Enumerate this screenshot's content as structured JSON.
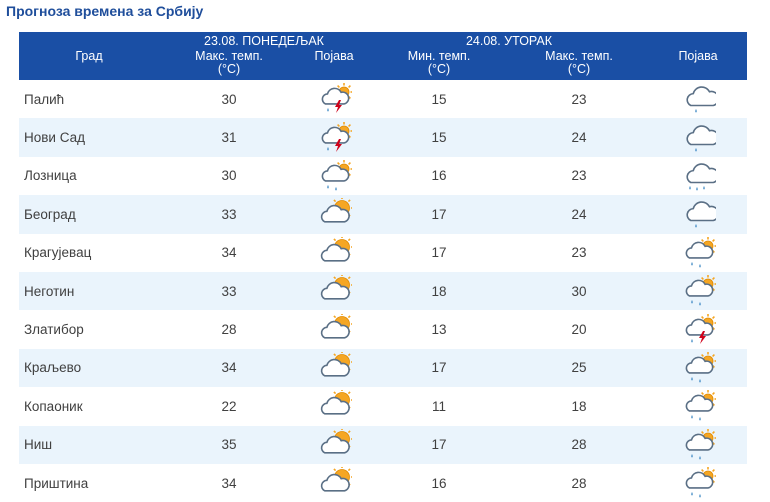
{
  "page": {
    "title": "Прогноза времена за Србију"
  },
  "header": {
    "city_label": "Град",
    "day1": {
      "date_label": "23.08. ПОНЕДЕЉАК",
      "max_label": "Макс. темп.",
      "max_unit": "(°C)",
      "phen_label": "Појава"
    },
    "day2": {
      "date_label": "24.08. УТОРАК",
      "min_label": "Мин. темп.",
      "min_unit": "(°C)",
      "max_label": "Макс. темп.",
      "max_unit": "(°C)",
      "phen_label": "Појава"
    }
  },
  "rows": [
    {
      "city": "Палић",
      "d1_max": "30",
      "d1_icon": "thunderstorm-sun-icon",
      "d2_min": "15",
      "d2_max": "23",
      "d2_icon": "overcast-light-rain-icon"
    },
    {
      "city": "Нови Сад",
      "d1_max": "31",
      "d1_icon": "thunderstorm-sun-icon",
      "d2_min": "15",
      "d2_max": "24",
      "d2_icon": "overcast-light-rain-icon"
    },
    {
      "city": "Лозница",
      "d1_max": "30",
      "d1_icon": "sun-cloud-rain-icon",
      "d2_min": "16",
      "d2_max": "23",
      "d2_icon": "overcast-rain-icon"
    },
    {
      "city": "Београд",
      "d1_max": "33",
      "d1_icon": "sun-behind-cloud-icon",
      "d2_min": "17",
      "d2_max": "24",
      "d2_icon": "overcast-light-rain-icon"
    },
    {
      "city": "Крагујевац",
      "d1_max": "34",
      "d1_icon": "sun-behind-cloud-icon",
      "d2_min": "17",
      "d2_max": "23",
      "d2_icon": "sun-cloud-rain-icon"
    },
    {
      "city": "Неготин",
      "d1_max": "33",
      "d1_icon": "sun-behind-cloud-icon",
      "d2_min": "18",
      "d2_max": "30",
      "d2_icon": "sun-cloud-rain-icon"
    },
    {
      "city": "Златибор",
      "d1_max": "28",
      "d1_icon": "sun-behind-cloud-icon",
      "d2_min": "13",
      "d2_max": "20",
      "d2_icon": "thunderstorm-sun-icon"
    },
    {
      "city": "Краљево",
      "d1_max": "34",
      "d1_icon": "sun-behind-cloud-icon",
      "d2_min": "17",
      "d2_max": "25",
      "d2_icon": "sun-cloud-rain-icon"
    },
    {
      "city": "Копаоник",
      "d1_max": "22",
      "d1_icon": "sun-behind-cloud-icon",
      "d2_min": "11",
      "d2_max": "18",
      "d2_icon": "sun-cloud-rain-icon"
    },
    {
      "city": "Ниш",
      "d1_max": "35",
      "d1_icon": "sun-behind-cloud-icon",
      "d2_min": "17",
      "d2_max": "28",
      "d2_icon": "sun-cloud-rain-icon"
    },
    {
      "city": "Приштина",
      "d1_max": "34",
      "d1_icon": "sun-behind-cloud-icon",
      "d2_min": "16",
      "d2_max": "28",
      "d2_icon": "sun-cloud-rain-icon"
    }
  ],
  "colors": {
    "header_bg": "#1a4fa5",
    "title": "#1f4e9b",
    "row_alt": "#eaf4fc",
    "cloud_fill": "#ffffff",
    "cloud_stroke": "#5a6f85",
    "sun": "#f5a623",
    "lightning": "#d0021b",
    "rain": "#4a90c8"
  }
}
